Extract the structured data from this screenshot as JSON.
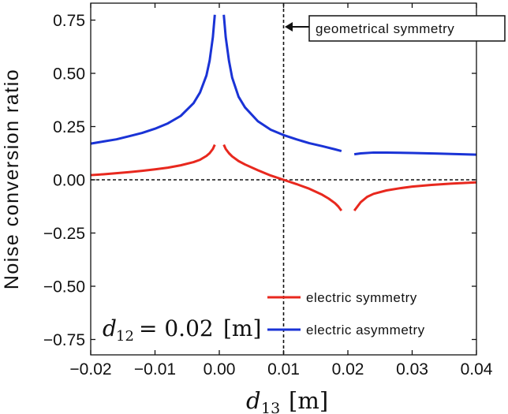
{
  "chart_data": {
    "type": "line",
    "xlabel_main": "d",
    "xlabel_sub": "13",
    "xlabel_unit": "[m]",
    "ylabel": "Noise conversion ratio",
    "xlim": [
      -0.02,
      0.04
    ],
    "ylim": [
      -0.8,
      0.8
    ],
    "xticks": [
      -0.02,
      -0.01,
      0.0,
      0.01,
      0.02,
      0.03,
      0.04
    ],
    "xtick_labels": [
      "−0.02",
      "−0.01",
      "0.00",
      "0.01",
      "0.02",
      "0.03",
      "0.04"
    ],
    "yticks": [
      0.75,
      0.5,
      0.25,
      0.0,
      -0.25,
      -0.5,
      -0.75
    ],
    "ytick_labels": [
      "0.75",
      "0.50",
      "0.25",
      "0.00",
      "−0.25",
      "−0.50",
      "−0.75"
    ],
    "grid": false,
    "legend_position": "bottom-right",
    "annotation": {
      "text": "geometrical symmetry",
      "x": 0.01
    },
    "parameter_label": {
      "main": "d",
      "sub": "12",
      "value": "= 0.02",
      "unit": "[m]"
    },
    "reference_lines": {
      "hline_y": 0,
      "vline_x": 0.01
    },
    "series": [
      {
        "name": "electric symmetry",
        "color": "#e8281e",
        "segments": [
          {
            "x": [
              -0.02,
              -0.018,
              -0.016,
              -0.014,
              -0.012,
              -0.01,
              -0.008,
              -0.006,
              -0.004,
              -0.003,
              -0.002,
              -0.0015,
              -0.001,
              -0.0007
            ],
            "y": [
              0.022,
              0.026,
              0.031,
              0.036,
              0.042,
              0.049,
              0.057,
              0.068,
              0.083,
              0.094,
              0.112,
              0.125,
              0.145,
              0.165
            ]
          },
          {
            "x": [
              0.0007,
              0.001,
              0.0015,
              0.002,
              0.003,
              0.004,
              0.006,
              0.008,
              0.01,
              0.012,
              0.014,
              0.016,
              0.017,
              0.018,
              0.0185,
              0.019
            ],
            "y": [
              0.165,
              0.145,
              0.125,
              0.11,
              0.088,
              0.072,
              0.045,
              0.02,
              0.0,
              -0.02,
              -0.042,
              -0.07,
              -0.088,
              -0.11,
              -0.125,
              -0.145
            ]
          },
          {
            "x": [
              0.021,
              0.0215,
              0.022,
              0.023,
              0.024,
              0.026,
              0.028,
              0.03,
              0.033,
              0.036,
              0.04
            ],
            "y": [
              -0.145,
              -0.125,
              -0.105,
              -0.08,
              -0.066,
              -0.05,
              -0.04,
              -0.032,
              -0.024,
              -0.018,
              -0.012
            ]
          }
        ]
      },
      {
        "name": "electric asymmetry",
        "color": "#1a33d6",
        "segments": [
          {
            "x": [
              -0.02,
              -0.018,
              -0.016,
              -0.014,
              -0.012,
              -0.01,
              -0.008,
              -0.006,
              -0.004,
              -0.003,
              -0.002,
              -0.0015,
              -0.001,
              -0.0007
            ],
            "y": [
              0.17,
              0.18,
              0.19,
              0.205,
              0.22,
              0.24,
              0.265,
              0.3,
              0.36,
              0.41,
              0.49,
              0.56,
              0.67,
              0.775
            ]
          },
          {
            "x": [
              0.0007,
              0.001,
              0.0015,
              0.002,
              0.003,
              0.004,
              0.006,
              0.008,
              0.01,
              0.012,
              0.014,
              0.016,
              0.018,
              0.019
            ],
            "y": [
              0.775,
              0.67,
              0.56,
              0.48,
              0.39,
              0.34,
              0.275,
              0.235,
              0.21,
              0.19,
              0.172,
              0.158,
              0.143,
              0.135
            ]
          },
          {
            "x": [
              0.021,
              0.022,
              0.024,
              0.026,
              0.03,
              0.034,
              0.04
            ],
            "y": [
              0.12,
              0.124,
              0.128,
              0.128,
              0.126,
              0.123,
              0.118
            ]
          }
        ]
      }
    ]
  }
}
